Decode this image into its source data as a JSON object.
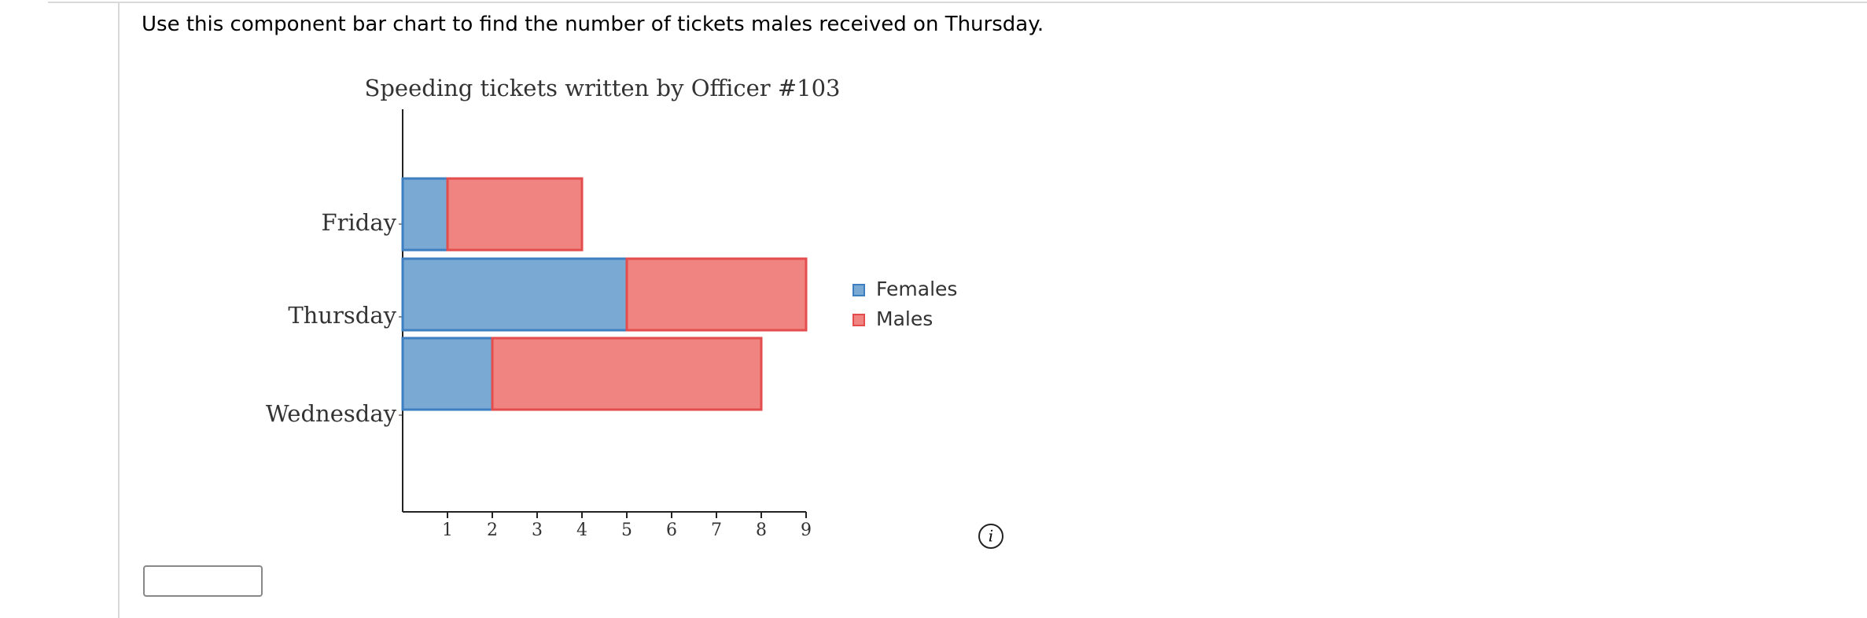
{
  "question": "Use this component bar chart to find the number of tickets males received on Thursday.",
  "chart_data": {
    "type": "bar",
    "orientation": "horizontal",
    "stacked": true,
    "title": "Speeding tickets written by Officer #103",
    "categories": [
      "Friday",
      "Thursday",
      "Wednesday"
    ],
    "series": [
      {
        "name": "Females",
        "color": "#7aaad4",
        "values": [
          1,
          5,
          2
        ]
      },
      {
        "name": "Males",
        "color": "#ef8480",
        "values": [
          3,
          4,
          6
        ]
      }
    ],
    "xlim": [
      0,
      9
    ],
    "xticks": [
      1,
      2,
      3,
      4,
      5,
      6,
      7,
      8,
      9
    ],
    "legend": "right"
  }
}
